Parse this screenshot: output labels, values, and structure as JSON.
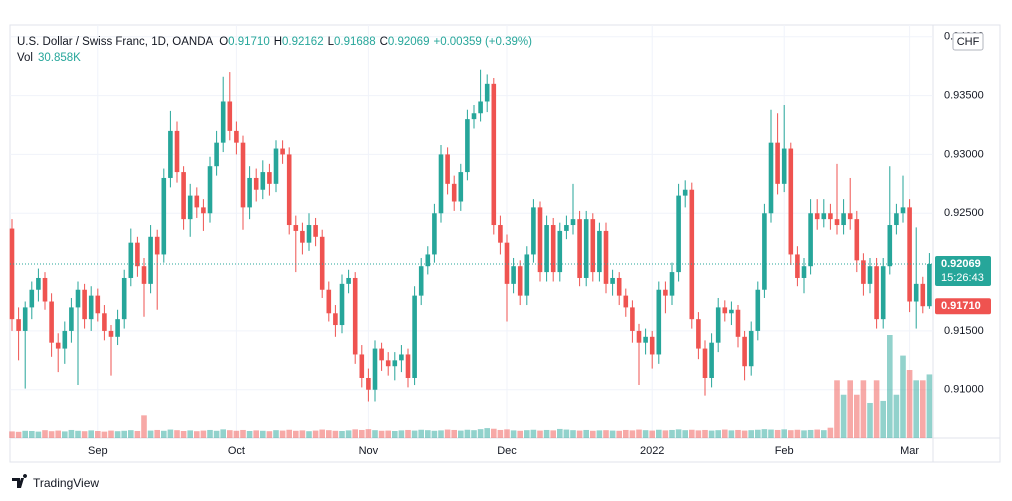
{
  "chart_data": {
    "type": "candlestick",
    "title": "U.S. Dollar / Swiss Franc, 1D, OANDA",
    "ohlc_legend": [
      {
        "key": "O",
        "value": "0.91710"
      },
      {
        "key": "H",
        "value": "0.92162"
      },
      {
        "key": "L",
        "value": "0.91688"
      },
      {
        "key": "C",
        "value": "0.92069"
      }
    ],
    "change": "+0.00359 (+0.39%)",
    "volume_label": "Vol",
    "volume_value": "30.858K",
    "currency": "CHF",
    "brand": "TradingView",
    "up_color": "#26a69a",
    "down_color": "#ef5350",
    "ylim": [
      0.9059,
      0.941
    ],
    "yticks": [
      {
        "value": 0.94,
        "label": "0.94000"
      },
      {
        "value": 0.935,
        "label": "0.93500"
      },
      {
        "value": 0.93,
        "label": "0.93000"
      },
      {
        "value": 0.925,
        "label": "0.92500"
      },
      {
        "value": 0.915,
        "label": "0.91500"
      },
      {
        "value": 0.91,
        "label": "0.91000"
      }
    ],
    "xticks": [
      {
        "value": 13,
        "label": "Sep"
      },
      {
        "value": 34,
        "label": "Oct"
      },
      {
        "value": 54,
        "label": "Nov"
      },
      {
        "value": 75,
        "label": "Dec"
      },
      {
        "value": 97,
        "label": "2022"
      },
      {
        "value": 117,
        "label": "Feb"
      },
      {
        "value": 136,
        "label": "Mar"
      }
    ],
    "grid": true,
    "price_labels": [
      {
        "value": 0.92069,
        "label": "0.92069",
        "countdown": "15:26:43",
        "color": "#26a69a"
      },
      {
        "value": 0.9171,
        "label": "0.91710",
        "color": "#ef5350"
      }
    ],
    "ohlc": [
      [
        0.9237,
        0.9245,
        0.915,
        0.916
      ],
      [
        0.916,
        0.917,
        0.9125,
        0.915
      ],
      [
        0.915,
        0.9175,
        0.9101,
        0.917
      ],
      [
        0.917,
        0.9192,
        0.916,
        0.9185
      ],
      [
        0.9185,
        0.9203,
        0.9175,
        0.9195
      ],
      [
        0.9195,
        0.92,
        0.9168,
        0.9175
      ],
      [
        0.9175,
        0.9182,
        0.9128,
        0.914
      ],
      [
        0.914,
        0.9148,
        0.9115,
        0.9135
      ],
      [
        0.9135,
        0.9158,
        0.9122,
        0.915
      ],
      [
        0.915,
        0.9178,
        0.914,
        0.917
      ],
      [
        0.917,
        0.9192,
        0.9104,
        0.9185
      ],
      [
        0.9185,
        0.919,
        0.9152,
        0.916
      ],
      [
        0.916,
        0.9188,
        0.915,
        0.918
      ],
      [
        0.918,
        0.9186,
        0.9158,
        0.9165
      ],
      [
        0.9165,
        0.9172,
        0.9142,
        0.915
      ],
      [
        0.915,
        0.9155,
        0.9112,
        0.9145
      ],
      [
        0.9145,
        0.9168,
        0.9138,
        0.916
      ],
      [
        0.916,
        0.9202,
        0.9152,
        0.9195
      ],
      [
        0.9195,
        0.9237,
        0.9188,
        0.9225
      ],
      [
        0.9225,
        0.923,
        0.9196,
        0.9205
      ],
      [
        0.9205,
        0.9212,
        0.9162,
        0.919
      ],
      [
        0.919,
        0.924,
        0.9182,
        0.923
      ],
      [
        0.923,
        0.9236,
        0.9168,
        0.9215
      ],
      [
        0.9215,
        0.9288,
        0.9208,
        0.928
      ],
      [
        0.928,
        0.9337,
        0.9272,
        0.932
      ],
      [
        0.932,
        0.9328,
        0.9276,
        0.9285
      ],
      [
        0.9285,
        0.929,
        0.9236,
        0.9245
      ],
      [
        0.9245,
        0.9275,
        0.923,
        0.9265
      ],
      [
        0.9265,
        0.9272,
        0.9246,
        0.9255
      ],
      [
        0.9255,
        0.9262,
        0.9235,
        0.925
      ],
      [
        0.925,
        0.9298,
        0.9242,
        0.929
      ],
      [
        0.929,
        0.932,
        0.9282,
        0.931
      ],
      [
        0.931,
        0.9366,
        0.9302,
        0.9345
      ],
      [
        0.9345,
        0.937,
        0.9312,
        0.932
      ],
      [
        0.932,
        0.9328,
        0.93,
        0.931
      ],
      [
        0.931,
        0.9316,
        0.9236,
        0.9255
      ],
      [
        0.9255,
        0.929,
        0.9245,
        0.928
      ],
      [
        0.928,
        0.9288,
        0.926,
        0.927
      ],
      [
        0.927,
        0.9295,
        0.9262,
        0.9285
      ],
      [
        0.9285,
        0.9292,
        0.9265,
        0.9275
      ],
      [
        0.9275,
        0.9312,
        0.9268,
        0.9305
      ],
      [
        0.9305,
        0.9312,
        0.9292,
        0.93
      ],
      [
        0.93,
        0.9306,
        0.9232,
        0.924
      ],
      [
        0.924,
        0.9248,
        0.92,
        0.9235
      ],
      [
        0.9235,
        0.9242,
        0.9215,
        0.9225
      ],
      [
        0.9225,
        0.925,
        0.9218,
        0.924
      ],
      [
        0.924,
        0.9246,
        0.9222,
        0.923
      ],
      [
        0.923,
        0.9236,
        0.9178,
        0.9185
      ],
      [
        0.9185,
        0.9192,
        0.9158,
        0.9165
      ],
      [
        0.9165,
        0.9172,
        0.9145,
        0.9155
      ],
      [
        0.9155,
        0.9198,
        0.9148,
        0.919
      ],
      [
        0.919,
        0.9202,
        0.9182,
        0.9195
      ],
      [
        0.9195,
        0.92,
        0.9122,
        0.913
      ],
      [
        0.913,
        0.9138,
        0.9102,
        0.911
      ],
      [
        0.911,
        0.9118,
        0.909,
        0.91
      ],
      [
        0.91,
        0.9142,
        0.909,
        0.9135
      ],
      [
        0.9135,
        0.914,
        0.9116,
        0.9125
      ],
      [
        0.9125,
        0.9132,
        0.9112,
        0.912
      ],
      [
        0.912,
        0.9132,
        0.9108,
        0.9125
      ],
      [
        0.9125,
        0.9138,
        0.9115,
        0.913
      ],
      [
        0.913,
        0.9135,
        0.9102,
        0.911
      ],
      [
        0.911,
        0.9188,
        0.9104,
        0.918
      ],
      [
        0.918,
        0.9212,
        0.9172,
        0.9205
      ],
      [
        0.9205,
        0.9222,
        0.9198,
        0.9215
      ],
      [
        0.9215,
        0.9258,
        0.9208,
        0.925
      ],
      [
        0.925,
        0.9308,
        0.9242,
        0.93
      ],
      [
        0.93,
        0.9306,
        0.9266,
        0.9275
      ],
      [
        0.9275,
        0.9282,
        0.9252,
        0.926
      ],
      [
        0.926,
        0.9292,
        0.9252,
        0.9285
      ],
      [
        0.9285,
        0.9338,
        0.9278,
        0.933
      ],
      [
        0.933,
        0.9342,
        0.9322,
        0.9335
      ],
      [
        0.9335,
        0.9372,
        0.9328,
        0.9345
      ],
      [
        0.9345,
        0.9368,
        0.9336,
        0.936
      ],
      [
        0.936,
        0.9365,
        0.9232,
        0.924
      ],
      [
        0.924,
        0.9248,
        0.9215,
        0.9225
      ],
      [
        0.9225,
        0.9232,
        0.9158,
        0.919
      ],
      [
        0.919,
        0.9212,
        0.9182,
        0.9205
      ],
      [
        0.9205,
        0.921,
        0.9172,
        0.918
      ],
      [
        0.918,
        0.9222,
        0.9172,
        0.9215
      ],
      [
        0.9215,
        0.9262,
        0.9208,
        0.9255
      ],
      [
        0.9255,
        0.926,
        0.9192,
        0.92
      ],
      [
        0.92,
        0.9248,
        0.9192,
        0.924
      ],
      [
        0.924,
        0.9246,
        0.9192,
        0.92
      ],
      [
        0.92,
        0.9242,
        0.9192,
        0.9235
      ],
      [
        0.9235,
        0.9248,
        0.9228,
        0.924
      ],
      [
        0.924,
        0.9275,
        0.9232,
        0.9245
      ],
      [
        0.9245,
        0.9252,
        0.9188,
        0.9195
      ],
      [
        0.9195,
        0.9252,
        0.9188,
        0.9245
      ],
      [
        0.9245,
        0.925,
        0.9192,
        0.92
      ],
      [
        0.92,
        0.9242,
        0.9192,
        0.9235
      ],
      [
        0.9235,
        0.9242,
        0.9182,
        0.919
      ],
      [
        0.919,
        0.9202,
        0.918,
        0.9195
      ],
      [
        0.9195,
        0.92,
        0.9172,
        0.918
      ],
      [
        0.918,
        0.9186,
        0.9162,
        0.917
      ],
      [
        0.917,
        0.9176,
        0.914,
        0.915
      ],
      [
        0.915,
        0.9156,
        0.9104,
        0.914
      ],
      [
        0.914,
        0.9152,
        0.913,
        0.9145
      ],
      [
        0.9145,
        0.915,
        0.9118,
        0.913
      ],
      [
        0.913,
        0.9192,
        0.9122,
        0.9185
      ],
      [
        0.9185,
        0.9192,
        0.9165,
        0.918
      ],
      [
        0.918,
        0.9208,
        0.9172,
        0.92
      ],
      [
        0.92,
        0.9275,
        0.9192,
        0.9265
      ],
      [
        0.9265,
        0.9278,
        0.9255,
        0.927
      ],
      [
        0.927,
        0.9276,
        0.9152,
        0.916
      ],
      [
        0.916,
        0.9166,
        0.9126,
        0.9135
      ],
      [
        0.9135,
        0.9142,
        0.9095,
        0.911
      ],
      [
        0.911,
        0.9148,
        0.9102,
        0.914
      ],
      [
        0.914,
        0.9178,
        0.9132,
        0.917
      ],
      [
        0.917,
        0.9176,
        0.9158,
        0.9165
      ],
      [
        0.9165,
        0.9175,
        0.9155,
        0.9168
      ],
      [
        0.9168,
        0.9172,
        0.9136,
        0.9145
      ],
      [
        0.9145,
        0.915,
        0.9108,
        0.912
      ],
      [
        0.912,
        0.9158,
        0.9112,
        0.915
      ],
      [
        0.915,
        0.9192,
        0.9142,
        0.9185
      ],
      [
        0.9185,
        0.9258,
        0.9178,
        0.925
      ],
      [
        0.925,
        0.9338,
        0.9242,
        0.931
      ],
      [
        0.931,
        0.9335,
        0.9266,
        0.9275
      ],
      [
        0.9275,
        0.9342,
        0.9268,
        0.9305
      ],
      [
        0.9305,
        0.931,
        0.9206,
        0.9215
      ],
      [
        0.9215,
        0.9222,
        0.9188,
        0.9195
      ],
      [
        0.9195,
        0.9212,
        0.9182,
        0.9205
      ],
      [
        0.9205,
        0.9262,
        0.9198,
        0.925
      ],
      [
        0.925,
        0.9262,
        0.9236,
        0.9245
      ],
      [
        0.9245,
        0.9262,
        0.9238,
        0.925
      ],
      [
        0.925,
        0.9258,
        0.9236,
        0.9245
      ],
      [
        0.9245,
        0.9292,
        0.9232,
        0.924
      ],
      [
        0.924,
        0.9262,
        0.9232,
        0.925
      ],
      [
        0.925,
        0.928,
        0.9236,
        0.9245
      ],
      [
        0.9245,
        0.9252,
        0.92,
        0.921
      ],
      [
        0.921,
        0.9216,
        0.918,
        0.919
      ],
      [
        0.919,
        0.9212,
        0.9182,
        0.9205
      ],
      [
        0.9205,
        0.9212,
        0.9152,
        0.916
      ],
      [
        0.916,
        0.9212,
        0.9152,
        0.9205
      ],
      [
        0.9205,
        0.929,
        0.9198,
        0.924
      ],
      [
        0.924,
        0.9258,
        0.9232,
        0.925
      ],
      [
        0.925,
        0.9282,
        0.9242,
        0.9255
      ],
      [
        0.9255,
        0.9262,
        0.9166,
        0.9175
      ],
      [
        0.9175,
        0.9238,
        0.9152,
        0.919
      ],
      [
        0.919,
        0.9196,
        0.9165,
        0.9171
      ],
      [
        0.9171,
        0.92162,
        0.91688,
        0.92069
      ]
    ],
    "volume": [
      3200,
      3000,
      3500,
      3400,
      3100,
      3800,
      3300,
      3600,
      3200,
      3900,
      3500,
      3300,
      3700,
      3400,
      3100,
      3600,
      3300,
      3500,
      3800,
      3400,
      11000,
      3600,
      3900,
      3500,
      4100,
      3800,
      3400,
      3700,
      3300,
      3600,
      3900,
      3500,
      4200,
      3800,
      3500,
      3900,
      3400,
      3700,
      3500,
      3300,
      3800,
      3600,
      4000,
      3500,
      3700,
      3300,
      3600,
      4100,
      3800,
      3500,
      3400,
      3700,
      4200,
      3900,
      4300,
      3800,
      3500,
      3600,
      3400,
      3700,
      3900,
      3600,
      4000,
      3800,
      3500,
      3700,
      4100,
      3900,
      3600,
      4000,
      3800,
      4300,
      4800,
      4500,
      3900,
      4200,
      3700,
      3500,
      3800,
      4000,
      3600,
      3900,
      3700,
      4400,
      4100,
      3800,
      3600,
      3900,
      3500,
      3700,
      3800,
      3600,
      3500,
      3900,
      3700,
      4100,
      3800,
      3600,
      4000,
      3700,
      3900,
      4200,
      3800,
      4000,
      3700,
      3900,
      3600,
      3800,
      4100,
      3700,
      3900,
      3600,
      3800,
      4000,
      4300,
      4100,
      3900,
      4200,
      3800,
      4000,
      3700,
      3900,
      4100,
      3800,
      5000,
      28000,
      21000,
      28000,
      21000,
      28000,
      17000,
      28000,
      18000,
      50000,
      21000,
      40000,
      33000,
      28000,
      28000,
      30858
    ]
  }
}
